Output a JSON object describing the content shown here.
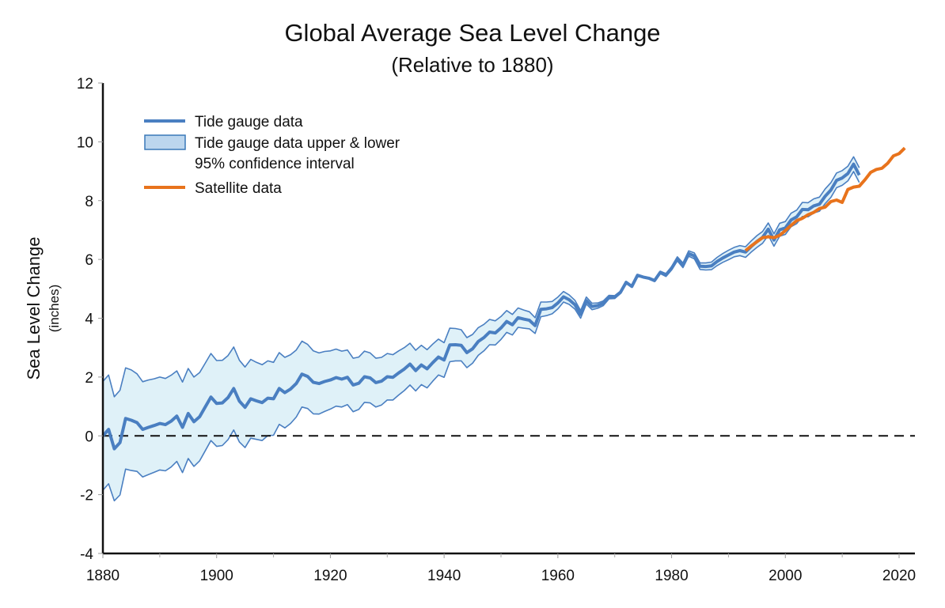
{
  "chart_data": {
    "type": "line",
    "title": "Global Average Sea Level Change",
    "subtitle": "(Relative to 1880)",
    "xlabel": "",
    "ylabel": "Sea Level Change",
    "ylabel_units": "(inches)",
    "xlim": [
      1880,
      2023
    ],
    "ylim": [
      -4,
      12
    ],
    "x_ticks": [
      1880,
      1900,
      1920,
      1940,
      1960,
      1980,
      2000,
      2020
    ],
    "x_minor_ticks": [
      1890,
      1910,
      1930,
      1950,
      1970,
      1990,
      2010
    ],
    "y_ticks": [
      -4,
      -2,
      0,
      2,
      4,
      6,
      8,
      10,
      12
    ],
    "x_tick_labels": [
      "1880",
      "1900",
      "1920",
      "1940",
      "1960",
      "1980",
      "2000",
      "2020"
    ],
    "y_tick_labels": [
      "-4",
      "-2",
      "0",
      "2",
      "4",
      "6",
      "8",
      "10",
      "12"
    ],
    "reference_line": {
      "y": 0,
      "style": "dashed"
    },
    "grid": false,
    "legend": {
      "placement": "top-left",
      "entries": [
        {
          "label": "Tide gauge data",
          "kind": "line",
          "color": "#4a7fc1"
        },
        {
          "label": "Tide gauge data upper & lower",
          "label_line2": "95% confidence interval",
          "kind": "band",
          "color": "#bcd6ee"
        },
        {
          "label": "Satellite data",
          "kind": "line",
          "color": "#e8731c"
        }
      ]
    },
    "colors": {
      "tide_line": "#4a7fc1",
      "band_fill": "#dff1f8",
      "band_edge": "#4a7fc1",
      "satellite_line": "#e8731c",
      "axis": "#111111"
    },
    "series": [
      {
        "name": "Tide gauge data",
        "x": [
          1880,
          1881,
          1882,
          1883,
          1884,
          1885,
          1886,
          1887,
          1888,
          1889,
          1890,
          1891,
          1892,
          1893,
          1894,
          1895,
          1896,
          1897,
          1898,
          1899,
          1900,
          1901,
          1902,
          1903,
          1904,
          1905,
          1906,
          1907,
          1908,
          1909,
          1910,
          1911,
          1912,
          1913,
          1914,
          1915,
          1916,
          1917,
          1918,
          1919,
          1920,
          1921,
          1922,
          1923,
          1924,
          1925,
          1926,
          1927,
          1928,
          1929,
          1930,
          1931,
          1932,
          1933,
          1934,
          1935,
          1936,
          1937,
          1938,
          1939,
          1940,
          1941,
          1942,
          1943,
          1944,
          1945,
          1946,
          1947,
          1948,
          1949,
          1950,
          1951,
          1952,
          1953,
          1954,
          1955,
          1956,
          1957,
          1958,
          1959,
          1960,
          1961,
          1962,
          1963,
          1964,
          1965,
          1966,
          1967,
          1968,
          1969,
          1970,
          1971,
          1972,
          1973,
          1974,
          1975,
          1976,
          1977,
          1978,
          1979,
          1980,
          1981,
          1982,
          1983,
          1984,
          1985,
          1986,
          1987,
          1988,
          1989,
          1990,
          1991,
          1992,
          1993,
          1994,
          1995,
          1996,
          1997,
          1998,
          1999,
          2000,
          2001,
          2002,
          2003,
          2004,
          2005,
          2006,
          2007,
          2008,
          2009,
          2010,
          2011,
          2012,
          2013
        ],
        "values": [
          0.0,
          0.22,
          -0.44,
          -0.23,
          0.59,
          0.53,
          0.45,
          0.22,
          0.29,
          0.35,
          0.42,
          0.38,
          0.5,
          0.67,
          0.29,
          0.76,
          0.48,
          0.65,
          0.98,
          1.32,
          1.1,
          1.12,
          1.3,
          1.61,
          1.18,
          0.97,
          1.26,
          1.19,
          1.13,
          1.28,
          1.26,
          1.61,
          1.47,
          1.59,
          1.78,
          2.1,
          2.02,
          1.82,
          1.78,
          1.85,
          1.9,
          1.98,
          1.93,
          1.99,
          1.73,
          1.79,
          2.01,
          1.97,
          1.81,
          1.86,
          2.01,
          1.99,
          2.14,
          2.27,
          2.44,
          2.22,
          2.41,
          2.28,
          2.49,
          2.68,
          2.58,
          3.09,
          3.1,
          3.08,
          2.83,
          2.96,
          3.21,
          3.34,
          3.53,
          3.5,
          3.67,
          3.89,
          3.78,
          4.02,
          3.97,
          3.93,
          3.75,
          4.3,
          4.32,
          4.36,
          4.52,
          4.73,
          4.63,
          4.46,
          4.13,
          4.6,
          4.4,
          4.43,
          4.51,
          4.72,
          4.72,
          4.88,
          5.22,
          5.08,
          5.46,
          5.4,
          5.36,
          5.28,
          5.56,
          5.47,
          5.7,
          6.02,
          5.8,
          6.2,
          6.12,
          5.77,
          5.76,
          5.78,
          5.93,
          6.05,
          6.15,
          6.25,
          6.3,
          6.25,
          6.44,
          6.61,
          6.75,
          7.03,
          6.66,
          7.01,
          7.07,
          7.34,
          7.45,
          7.7,
          7.69,
          7.82,
          7.88,
          8.15,
          8.36,
          8.69,
          8.77,
          8.92,
          9.24,
          8.87
        ],
        "upper": [
          1.85,
          2.07,
          1.33,
          1.55,
          2.31,
          2.24,
          2.11,
          1.84,
          1.9,
          1.94,
          2.0,
          1.95,
          2.06,
          2.21,
          1.83,
          2.29,
          2.0,
          2.15,
          2.47,
          2.8,
          2.56,
          2.57,
          2.73,
          3.02,
          2.57,
          2.34,
          2.6,
          2.5,
          2.42,
          2.55,
          2.5,
          2.83,
          2.67,
          2.76,
          2.92,
          3.22,
          3.11,
          2.89,
          2.82,
          2.87,
          2.89,
          2.95,
          2.88,
          2.92,
          2.64,
          2.68,
          2.88,
          2.82,
          2.64,
          2.67,
          2.8,
          2.76,
          2.89,
          3.0,
          3.15,
          2.91,
          3.08,
          2.93,
          3.12,
          3.29,
          3.17,
          3.66,
          3.65,
          3.61,
          3.34,
          3.45,
          3.68,
          3.79,
          3.96,
          3.91,
          4.06,
          4.26,
          4.13,
          4.35,
          4.28,
          4.22,
          4.02,
          4.55,
          4.55,
          4.57,
          4.72,
          4.91,
          4.79,
          4.61,
          4.26,
          4.72,
          4.51,
          4.52,
          4.59,
          4.78,
          4.77,
          4.92,
          5.25,
          5.1,
          5.46,
          5.39,
          5.34,
          5.25,
          5.52,
          5.42,
          5.64,
          5.95,
          5.72,
          6.11,
          6.02,
          5.66,
          5.64,
          5.65,
          5.79,
          5.9,
          5.99,
          6.09,
          6.13,
          6.07,
          6.25,
          6.41,
          6.55,
          6.82,
          6.45,
          6.79,
          6.85,
          7.11,
          7.22,
          7.46,
          7.45,
          7.58,
          7.64,
          7.9,
          8.11,
          8.44,
          8.52,
          8.67,
          8.99,
          8.62
        ],
        "lower": [
          -1.85,
          -1.63,
          -2.21,
          -2.01,
          -1.13,
          -1.18,
          -1.21,
          -1.4,
          -1.32,
          -1.24,
          -1.16,
          -1.19,
          -1.06,
          -0.87,
          -1.25,
          -0.77,
          -1.04,
          -0.85,
          -0.51,
          -0.16,
          -0.36,
          -0.33,
          -0.13,
          0.2,
          -0.21,
          -0.4,
          -0.08,
          -0.12,
          -0.16,
          0.01,
          0.02,
          0.39,
          0.27,
          0.42,
          0.64,
          0.98,
          0.93,
          0.75,
          0.74,
          0.83,
          0.91,
          1.01,
          0.98,
          1.06,
          0.82,
          0.9,
          1.14,
          1.12,
          0.98,
          1.05,
          1.22,
          1.22,
          1.39,
          1.54,
          1.73,
          1.53,
          1.74,
          1.63,
          1.86,
          2.07,
          1.99,
          2.52,
          2.55,
          2.55,
          2.32,
          2.47,
          2.74,
          2.89,
          3.1,
          3.09,
          3.28,
          3.52,
          3.43,
          3.69,
          3.66,
          3.64,
          3.48,
          4.05,
          4.09,
          4.15,
          4.32,
          4.55,
          4.47,
          4.31,
          4.0,
          4.48,
          4.29,
          4.34,
          4.43,
          4.66,
          4.67,
          4.84,
          5.19,
          5.06,
          5.46,
          5.41,
          5.38,
          5.31,
          5.6,
          5.52,
          5.76,
          6.09,
          5.88,
          6.29,
          6.22,
          5.88,
          5.88,
          5.91,
          6.07,
          6.2,
          6.31,
          6.41,
          6.47,
          6.43,
          6.63,
          6.81,
          6.95,
          7.24,
          6.87,
          7.23,
          7.29,
          7.57,
          7.68,
          7.94,
          7.93,
          8.06,
          8.12,
          8.4,
          8.61,
          8.94,
          9.02,
          9.17,
          9.49,
          9.12
        ]
      },
      {
        "name": "Satellite data",
        "x": [
          1993,
          1994,
          1995,
          1996,
          1997,
          1998,
          1999,
          2000,
          2001,
          2002,
          2003,
          2004,
          2005,
          2006,
          2007,
          2008,
          2009,
          2010,
          2011,
          2012,
          2013,
          2014,
          2015,
          2016,
          2017,
          2018,
          2019,
          2020,
          2021
        ],
        "values": [
          6.3,
          6.46,
          6.6,
          6.74,
          6.77,
          6.74,
          6.82,
          6.98,
          7.16,
          7.32,
          7.4,
          7.52,
          7.6,
          7.73,
          7.78,
          7.97,
          8.02,
          7.94,
          8.38,
          8.46,
          8.49,
          8.71,
          8.96,
          9.06,
          9.1,
          9.27,
          9.52,
          9.6,
          9.79
        ]
      }
    ]
  }
}
